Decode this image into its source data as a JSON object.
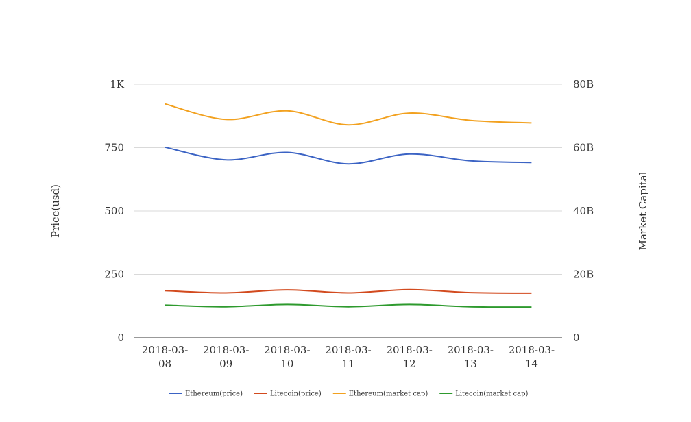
{
  "chart_data": {
    "type": "line",
    "categories": [
      "2018-03-08",
      "2018-03-09",
      "2018-03-10",
      "2018-03-11",
      "2018-03-12",
      "2018-03-13",
      "2018-03-14"
    ],
    "category_labels": [
      [
        "2018-03-",
        "08"
      ],
      [
        "2018-03-",
        "09"
      ],
      [
        "2018-03-",
        "10"
      ],
      [
        "2018-03-",
        "11"
      ],
      [
        "2018-03-",
        "12"
      ],
      [
        "2018-03-",
        "13"
      ],
      [
        "2018-03-",
        "14"
      ]
    ],
    "ylabel": "Price(usd)",
    "y2label": "Market Capital",
    "ylim": [
      0,
      1000
    ],
    "y2lim": [
      0,
      80000000000
    ],
    "yticks": [
      0,
      250,
      500,
      750,
      1000
    ],
    "ytick_labels": [
      "0",
      "250",
      "500",
      "750",
      "1K"
    ],
    "y2ticks": [
      0,
      20000000000,
      40000000000,
      60000000000,
      80000000000
    ],
    "y2tick_labels": [
      "0",
      "20B",
      "40B",
      "60B",
      "80B"
    ],
    "grid": true,
    "legend_position": "bottom",
    "series": [
      {
        "name": "Ethereum(price)",
        "axis": "left",
        "color": "#3b63c4",
        "values": [
          752,
          702,
          731,
          686,
          725,
          698,
          691
        ]
      },
      {
        "name": "Litecoin(price)",
        "axis": "left",
        "color": "#d24a1e",
        "values": [
          186,
          177,
          189,
          177,
          190,
          178,
          176
        ]
      },
      {
        "name": "Ethereum(market cap)",
        "axis": "right",
        "color": "#f2a11f",
        "values": [
          73800000000,
          68900000000,
          71600000000,
          67200000000,
          70900000000,
          68600000000,
          67800000000
        ]
      },
      {
        "name": "Litecoin(market cap)",
        "axis": "right",
        "color": "#2e9a2e",
        "values": [
          10300000000,
          9800000000,
          10500000000,
          9800000000,
          10500000000,
          9800000000,
          9700000000
        ]
      }
    ]
  }
}
